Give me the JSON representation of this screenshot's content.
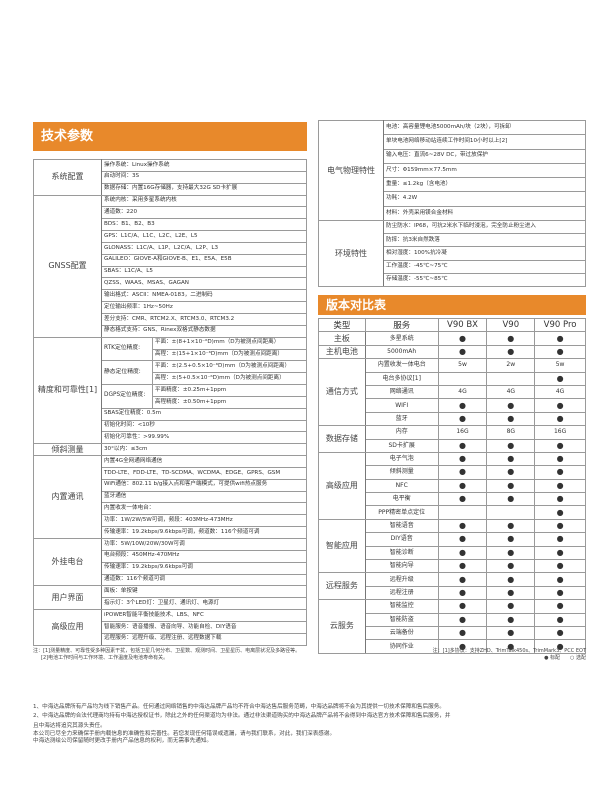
{
  "tech_title": "技术参数",
  "version_title": "版本对比表",
  "left_groups": [
    {
      "label": "系统配置",
      "rows": [
        "操作系统：Linux操作系统",
        "启动时间：3S",
        "数据存储：内置16G存储器，支持最大32G SD卡扩展"
      ]
    },
    {
      "label": "GNSS配置",
      "rows": [
        "系统内核：采用多星系统内核",
        "通道数：220",
        "BDS：B1、B2、B3",
        "GPS：L1C/A、L1C、L2C、L2E、L5",
        "GLONASS：L1C/A、L1P、L2C/A、L2P、L3",
        "GALILEO：GIOVE-A和GIOVE-B、E1、E5A、E5B",
        "SBAS：L1C/A、L5",
        "QZSS、WAAS、MSAS、GAGAN",
        "输出格式：ASCII：NMEA-0183，二进制码",
        "定位输出频率：1Hz~50Hz",
        "差分支持：CMR、RTCM2.X、RTCM3.0、RTCM3.2",
        "静态格式支持：GNS、Rinex双格式静态数据"
      ]
    },
    {
      "label": "精度和可靠性[1]",
      "rows": [
        {
          "sub": "RTK定位精度:",
          "lines": [
            "平面：±(8+1×10⁻⁶D)mm（D为被测点间距离）",
            "高程：±(15+1×10⁻⁶D)mm（D为被测点间距离）"
          ]
        },
        {
          "sub": "静态定位精度:",
          "lines": [
            "平面：±(2.5+0.5×10⁻⁶D)mm（D为被测点间距离）",
            "高程：±(5+0.5×10⁻⁶D)mm（D为被测点间距离）"
          ]
        },
        {
          "sub": "DGPS定位精度:",
          "lines": [
            "平面精度：±0.25m+1ppm",
            "高程精度：±0.50m+1ppm"
          ]
        },
        "SBAS定位精度：0.5m",
        "初始化时间：<10秒",
        "初始化可靠性：>99.99%"
      ]
    },
    {
      "label": "倾斜测量",
      "rows": [
        "30°以内：≤3cm"
      ]
    },
    {
      "label": "内置通讯",
      "rows": [
        "内置4G全网通网络通信",
        "TDD-LTE、FDD-LTE、TD-SCDMA、WCDMA、EDGE、GPRS、GSM",
        "WiFi通信：802.11 b/g接入点和客户端模式，可提供wifi热点服务",
        "蓝牙通信",
        "内置收发一体电台：",
        "功率：1W/2W/5W可调，频段：403MHz-473MHz",
        "传输速率：19.2kbps/9.6kbps可调，频道数：116个频道可调"
      ]
    },
    {
      "label": "外挂电台",
      "rows": [
        "功率：5W/10W/20W/30W可调",
        "电台频段：450MHz-470MHz",
        "传输速率：19.2kbps/9.6kbps可调",
        "通道数：116个频道可调"
      ]
    },
    {
      "label": "用户界面",
      "rows": [
        "面板：单按键",
        "指示灯：3个LED灯：卫星灯、通讯灯、电源灯"
      ]
    },
    {
      "label": "高级应用",
      "rows": [
        "iPOWER智能平衡技能技术、LBS、NFC",
        "智能服务：语音播报、语音向导、功能自检、DIY语音",
        "远程服务：远程升级、远程注册、远程数据下载"
      ]
    }
  ],
  "right_groups": [
    {
      "label": "电气物理特性",
      "cls": "e",
      "rows": [
        "电池：高容量锂电池5000mAh/块（2块），可拆卸",
        "单块电池网络移动站连续工作时间10小时以上[2]",
        "输入电压：直流6~28V DC，带过放保护",
        "尺寸：Φ159mm×77.5mm",
        "重量：≤1.2kg（含电池）",
        "功耗：4.2W",
        "材料：外壳采用镁合金材料"
      ]
    },
    {
      "label": "环境特性",
      "cls": "v",
      "rows": [
        "防尘防水：IP68，可抗2米水下临时浸泡，完全防止粉尘进入",
        "防摔：抗3米自然跌落",
        "相对湿度：100%抗冷凝",
        "工作温度：-45℃~75℃",
        "存储温度：-55℃~85℃"
      ]
    }
  ],
  "version_table": {
    "headers": [
      "类型",
      "服务",
      "V90 BX",
      "V90",
      "V90 Pro"
    ],
    "groups": [
      {
        "type": "主板",
        "rows": [
          {
            "service": "多星系统",
            "values": [
              "●",
              "●",
              "●"
            ]
          }
        ]
      },
      {
        "type": "主机电池",
        "rows": [
          {
            "service": "5000mAh",
            "values": [
              "●",
              "●",
              "●"
            ]
          }
        ]
      },
      {
        "type": "通信方式",
        "rows": [
          {
            "service": "内置收发一体电台",
            "values": [
              "5w",
              "2w",
              "5w"
            ]
          },
          {
            "service": "电台多协议[1]",
            "values": [
              "",
              "",
              "●"
            ]
          },
          {
            "service": "网络通讯",
            "values": [
              "4G",
              "4G",
              "4G"
            ]
          },
          {
            "service": "WIFI",
            "values": [
              "●",
              "●",
              "●"
            ]
          },
          {
            "service": "蓝牙",
            "values": [
              "●",
              "●",
              "●"
            ]
          }
        ]
      },
      {
        "type": "数据存储",
        "rows": [
          {
            "service": "内存",
            "values": [
              "16G",
              "8G",
              "16G"
            ]
          },
          {
            "service": "SD卡扩展",
            "values": [
              "●",
              "●",
              "●"
            ]
          }
        ]
      },
      {
        "type": "高级应用",
        "rows": [
          {
            "service": "电子气泡",
            "values": [
              "●",
              "●",
              "●"
            ]
          },
          {
            "service": "倾斜测量",
            "values": [
              "●",
              "●",
              "●"
            ]
          },
          {
            "service": "NFC",
            "values": [
              "●",
              "●",
              "●"
            ]
          },
          {
            "service": "电平衡",
            "values": [
              "●",
              "●",
              "●"
            ]
          },
          {
            "service": "PPP精密单点定位",
            "values": [
              "",
              "",
              "●"
            ]
          }
        ]
      },
      {
        "type": "智能应用",
        "rows": [
          {
            "service": "智能语音",
            "values": [
              "●",
              "●",
              "●"
            ]
          },
          {
            "service": "DIY语音",
            "values": [
              "●",
              "●",
              "●"
            ]
          },
          {
            "service": "智能诊断",
            "values": [
              "●",
              "●",
              "●"
            ]
          },
          {
            "service": "智能向导",
            "values": [
              "●",
              "●",
              "●"
            ]
          }
        ]
      },
      {
        "type": "远程服务",
        "rows": [
          {
            "service": "远程升级",
            "values": [
              "●",
              "●",
              "●"
            ]
          },
          {
            "service": "远程注册",
            "values": [
              "●",
              "●",
              "●"
            ]
          }
        ]
      },
      {
        "type": "云服务",
        "rows": [
          {
            "service": "智能监控",
            "values": [
              "●",
              "●",
              "●"
            ]
          },
          {
            "service": "智能防盗",
            "values": [
              "●",
              "●",
              "●"
            ]
          },
          {
            "service": "云端备份",
            "values": [
              "●",
              "●",
              "●"
            ]
          },
          {
            "service": "协同作业",
            "values": [
              "●",
              "●",
              "●"
            ]
          }
        ]
      }
    ]
  },
  "notes": {
    "left": [
      "注：[1]测量精度、可靠性受多种因素干扰，包括卫星几何分布、卫星数、观测时间、卫星星历、电离层状况及多路径等。",
      "[2]电池工作时间与工作环境、工作温度及电池寿命有关。"
    ],
    "right": [
      "注：[1]多协议：支持ZHD、TrimTalk450s、TrimMark3、PCC EOT",
      "● 标配　　○ 选配"
    ]
  },
  "bottom": [
    "1、中海达品牌所有产品均为线下销售产品。任何通过网络销售的中海达品牌产品均不符合中海达售后服务范畴，中海达品牌将不会为其提供一切技术保障和售后服务。",
    "2、中海达品牌的合法代理商均持有中海达授权证书，除此之外的任何渠道均为非法。通过非法渠道购买的中海达品牌产品将不会得到中海达官方技术保障和售后服务，并",
    "且中海达将追究其源头责任。",
    "本公司已尽全力来确保手册内载信息的准确性和完善性。若您发现任何错误或遗漏，请与我们联系，对此，我们深表感谢。",
    "中海达测绘公司保留随时更改手册内产品信息的权利，而无需事先通知。"
  ]
}
